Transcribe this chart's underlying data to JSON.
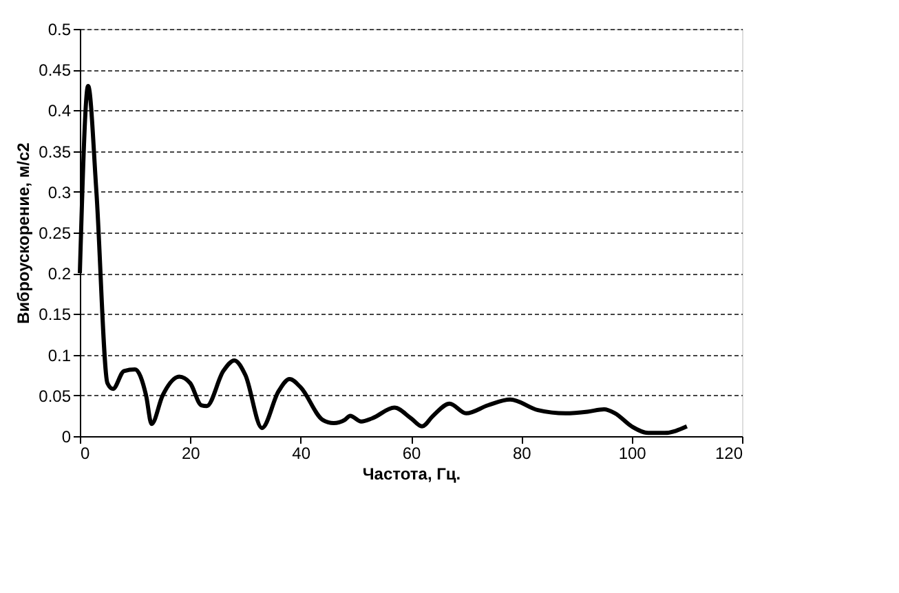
{
  "chart_data": {
    "type": "line",
    "xlabel": "Частота, Гц.",
    "ylabel": "Виброускорение, м/с2",
    "x": [
      0,
      1.5,
      3,
      5,
      6,
      8,
      10,
      12,
      13,
      15,
      18,
      20,
      22,
      23,
      26,
      28,
      30,
      33,
      36,
      38,
      40,
      44,
      46,
      48,
      49,
      51,
      53,
      57,
      60,
      62,
      64,
      67,
      70,
      74,
      78,
      83,
      88,
      92,
      95,
      97,
      100,
      103,
      106,
      110
    ],
    "series": [
      {
        "color": "#000000",
        "values": [
          0.2,
          0.43,
          0.3,
          0.065,
          0.058,
          0.08,
          0.082,
          0.05,
          0.015,
          0.05,
          0.073,
          0.065,
          0.038,
          0.037,
          0.08,
          0.093,
          0.075,
          0.01,
          0.055,
          0.07,
          0.06,
          0.02,
          0.016,
          0.02,
          0.025,
          0.018,
          0.022,
          0.035,
          0.022,
          0.012,
          0.025,
          0.04,
          0.028,
          0.038,
          0.045,
          0.032,
          0.028,
          0.03,
          0.033,
          0.028,
          0.012,
          0.004,
          0.004,
          0.012
        ]
      }
    ],
    "xlim": [
      0,
      120
    ],
    "xticks": [
      0,
      20,
      40,
      60,
      80,
      100,
      120
    ],
    "ylim": [
      0,
      0.5
    ],
    "yticks": [
      0,
      0.05,
      0.1,
      0.15,
      0.2,
      0.25,
      0.3,
      0.35,
      0.4,
      0.45,
      0.5
    ],
    "grid": "y",
    "marker": "none",
    "line_style": "solid"
  }
}
